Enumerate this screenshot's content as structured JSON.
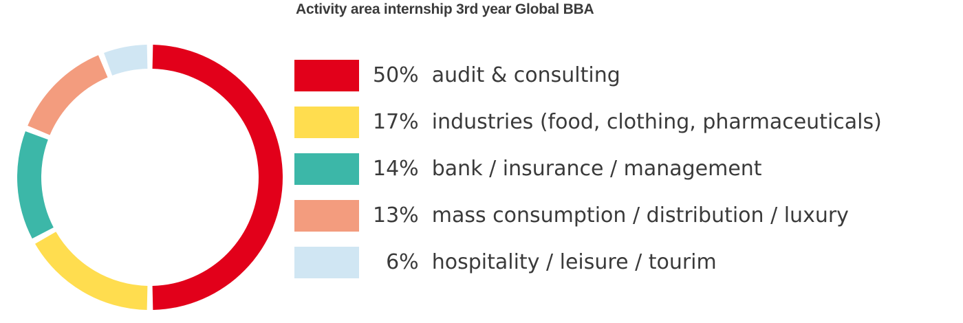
{
  "chart_data": {
    "type": "pie",
    "title": "Activity area internship 3rd year Global BBA",
    "legend_position": "right",
    "slices": [
      {
        "percent_label": "50%",
        "label": "audit & consulting",
        "value": 50,
        "color": "#e2001a"
      },
      {
        "percent_label": "17%",
        "label": "industries (food, clothing, pharmaceuticals)",
        "value": 17,
        "color": "#ffdd4f"
      },
      {
        "percent_label": "14%",
        "label": "bank / insurance / management",
        "value": 14,
        "color": "#3cb7a8"
      },
      {
        "percent_label": "13%",
        "label": "mass consumption / distribution / luxury",
        "value": 13,
        "color": "#f39c7e"
      },
      {
        "percent_label": "6%",
        "label": "hospitality / leisure / tourim",
        "value": 6,
        "color": "#d0e6f3"
      }
    ]
  }
}
